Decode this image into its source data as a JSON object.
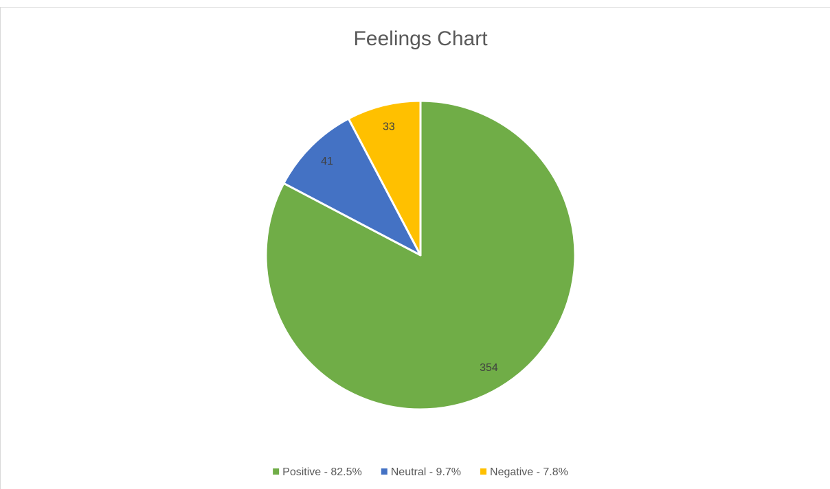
{
  "chart_data": {
    "type": "pie",
    "title": "Feelings Chart",
    "categories": [
      "Positive - 82.5%",
      "Neutral - 9.7%",
      "Negative - 7.8%"
    ],
    "values": [
      354,
      41,
      33
    ],
    "colors": [
      "#70ad47",
      "#4472c4",
      "#ffc000"
    ],
    "legend": "bottom"
  }
}
